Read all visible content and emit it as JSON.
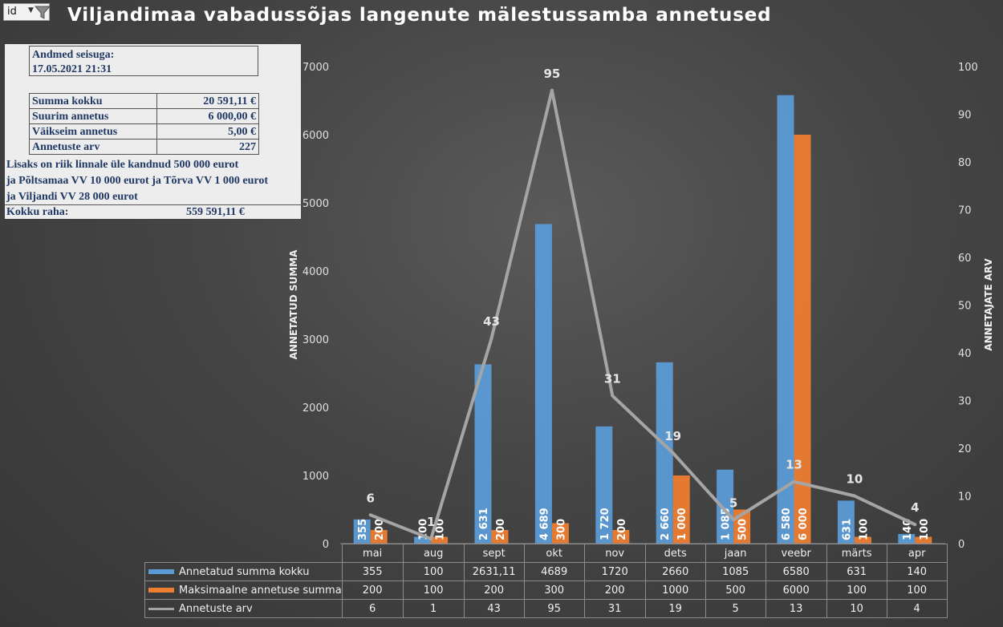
{
  "filter": {
    "label": "id",
    "dropdown_icon": "chevron-down-icon",
    "filter_icon": "funnel-icon"
  },
  "title": "Viljandimaa vabadussõjas langenute mälestussamba annetused",
  "info": {
    "as_of_label": "Andmed seisuga:",
    "as_of_value": "17.05.2021 21:31",
    "rows": [
      {
        "label": "Summa kokku",
        "value": "20 591,11 €"
      },
      {
        "label": "Suurim annetus",
        "value": "6 000,00 €"
      },
      {
        "label": "Väikseim annetus",
        "value": "5,00 €"
      },
      {
        "label": "Annetuste arv",
        "value": "227"
      }
    ],
    "extra_lines": [
      "Lisaks on riik linnale üle kandnud 500 000 eurot",
      "ja Põltsamaa VV 10 000 eurot ja Tõrva VV 1 000 eurot",
      "ja Viljandi VV 28 000 eurot"
    ],
    "total_label": "Kokku raha:",
    "total_value": "559 591,11 €"
  },
  "chart_data": {
    "type": "bar",
    "categories": [
      "mai",
      "aug",
      "sept",
      "okt",
      "nov",
      "dets",
      "jaan",
      "veebr",
      "märts",
      "apr"
    ],
    "series": [
      {
        "name": "Annetatud summa kokku",
        "kind": "bar",
        "axis": "left",
        "color": "#5b9bd5",
        "values": [
          355,
          100,
          2631.11,
          4689,
          1720,
          2660,
          1085,
          6580,
          631,
          140
        ],
        "table_labels": [
          "355",
          "100",
          "2631,11",
          "4689",
          "1720",
          "2660",
          "1085",
          "6580",
          "631",
          "140"
        ],
        "bar_labels": [
          "355",
          "100",
          "2 631",
          "4 689",
          "1 720",
          "2 660",
          "1 085",
          "6 580",
          "631",
          "140"
        ]
      },
      {
        "name": "Maksimaalne annetuse summa",
        "kind": "bar",
        "axis": "left",
        "color": "#ed7d31",
        "values": [
          200,
          100,
          200,
          300,
          200,
          1000,
          500,
          6000,
          100,
          100
        ],
        "table_labels": [
          "200",
          "100",
          "200",
          "300",
          "200",
          "1000",
          "500",
          "6000",
          "100",
          "100"
        ],
        "bar_labels": [
          "200",
          "100",
          "200",
          "300",
          "200",
          "1 000",
          "500",
          "6 000",
          "100",
          "100"
        ]
      },
      {
        "name": "Annetuste arv",
        "kind": "line",
        "axis": "right",
        "color": "#a5a5a5",
        "values": [
          6,
          1,
          43,
          95,
          31,
          19,
          5,
          13,
          10,
          4
        ],
        "table_labels": [
          "6",
          "1",
          "43",
          "95",
          "31",
          "19",
          "5",
          "13",
          "10",
          "4"
        ],
        "point_labels": [
          "6",
          "1",
          "43",
          "95",
          "31",
          "19",
          "5",
          "13",
          "10",
          "4"
        ]
      }
    ],
    "y_left": {
      "label": "ANNETATUD SUMMA",
      "min": 0,
      "max": 7000,
      "ticks": [
        "0",
        "1000",
        "2000",
        "3000",
        "4000",
        "5000",
        "6000",
        "7000"
      ]
    },
    "y_right": {
      "label": "ANNETAJATE ARV",
      "min": 0,
      "max": 100,
      "ticks": [
        "0",
        "10",
        "20",
        "30",
        "40",
        "50",
        "60",
        "70",
        "80",
        "90",
        "100"
      ]
    },
    "grid": false,
    "legend": "data-table-bottom"
  }
}
